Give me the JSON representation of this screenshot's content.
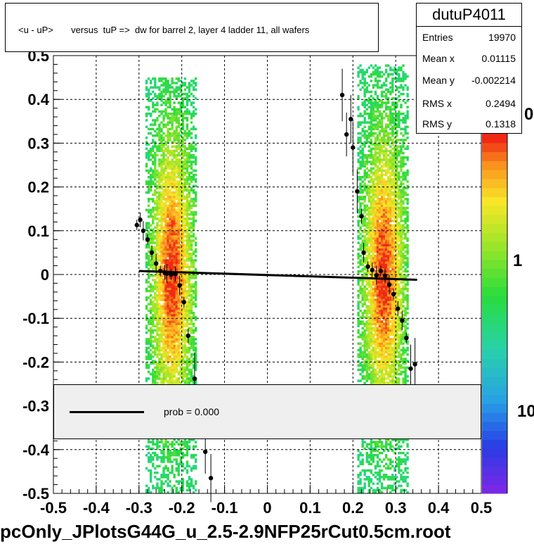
{
  "title": "<u - uP>       versus  tuP =>  dw for barrel 2, layer 4 ladder 11, all wafers",
  "stats": {
    "name": "dutuP4011",
    "rows": [
      {
        "label": "Entries",
        "value": "19970"
      },
      {
        "label": "Mean x",
        "value": "0.01115"
      },
      {
        "label": "Mean y",
        "value": "-0.002214"
      },
      {
        "label": "RMS x",
        "value": "0.2494"
      },
      {
        "label": "RMS y",
        "value": "0.1318"
      }
    ]
  },
  "legend": {
    "label": "prob = 0.000"
  },
  "footer": "pcOnly_JPlotsG44G_u_2.5-2.9NFP25rCut0.5cm.root",
  "colorbar_ticks": [
    "0",
    "1",
    "10"
  ],
  "colors": {
    "frame": "#000000",
    "fit_line": "#000000",
    "grid": "#000000"
  },
  "chart_data": {
    "type": "heatmap",
    "xlim": [
      -0.5,
      0.5
    ],
    "ylim": [
      -0.5,
      0.5
    ],
    "x_ticks": [
      "-0.5",
      "-0.4",
      "-0.3",
      "-0.2",
      "-0.1",
      "0",
      "0.1",
      "0.2",
      "0.3",
      "0.4",
      "0.5"
    ],
    "y_ticks": [
      "-0.5",
      "-0.4",
      "-0.3",
      "-0.2",
      "-0.1",
      "0",
      "0.1",
      "0.2",
      "0.3",
      "0.4",
      "0.5"
    ],
    "grid": true,
    "z_scale": "log",
    "fit_line": {
      "x": [
        -0.3,
        0.35
      ],
      "y": [
        0.008,
        -0.012
      ]
    },
    "profile_points": [
      {
        "x": -0.305,
        "y": 0.113
      },
      {
        "x": -0.297,
        "y": 0.125
      },
      {
        "x": -0.29,
        "y": 0.1
      },
      {
        "x": -0.28,
        "y": 0.08
      },
      {
        "x": -0.27,
        "y": 0.05
      },
      {
        "x": -0.26,
        "y": 0.025
      },
      {
        "x": -0.25,
        "y": 0.008
      },
      {
        "x": -0.24,
        "y": 0.005
      },
      {
        "x": -0.235,
        "y": 0.002
      },
      {
        "x": -0.225,
        "y": 0.0
      },
      {
        "x": -0.215,
        "y": 0.001
      },
      {
        "x": -0.205,
        "y": -0.025
      },
      {
        "x": -0.195,
        "y": -0.063
      },
      {
        "x": -0.185,
        "y": -0.14
      },
      {
        "x": -0.17,
        "y": -0.238
      },
      {
        "x": -0.145,
        "y": -0.405
      },
      {
        "x": -0.132,
        "y": -0.465
      },
      {
        "x": 0.175,
        "y": 0.41
      },
      {
        "x": 0.185,
        "y": 0.32
      },
      {
        "x": 0.195,
        "y": 0.355
      },
      {
        "x": 0.2,
        "y": 0.29
      },
      {
        "x": 0.21,
        "y": 0.19
      },
      {
        "x": 0.22,
        "y": 0.133
      },
      {
        "x": 0.225,
        "y": 0.05
      },
      {
        "x": 0.235,
        "y": 0.018
      },
      {
        "x": 0.245,
        "y": 0.01
      },
      {
        "x": 0.255,
        "y": -0.002
      },
      {
        "x": 0.265,
        "y": 0.008
      },
      {
        "x": 0.275,
        "y": -0.003
      },
      {
        "x": 0.285,
        "y": -0.023
      },
      {
        "x": 0.295,
        "y": -0.045
      },
      {
        "x": 0.305,
        "y": -0.078
      },
      {
        "x": 0.315,
        "y": -0.105
      },
      {
        "x": 0.325,
        "y": -0.145
      },
      {
        "x": 0.335,
        "y": -0.215
      },
      {
        "x": 0.345,
        "y": -0.205
      }
    ],
    "bands": [
      {
        "x_center": -0.225,
        "x_half_width": 0.06,
        "y_min": -0.5,
        "y_max": 0.45,
        "peak_y": 0.0
      },
      {
        "x_center": 0.27,
        "x_half_width": 0.06,
        "y_min": -0.5,
        "y_max": 0.48,
        "peak_y": 0.0
      }
    ]
  }
}
